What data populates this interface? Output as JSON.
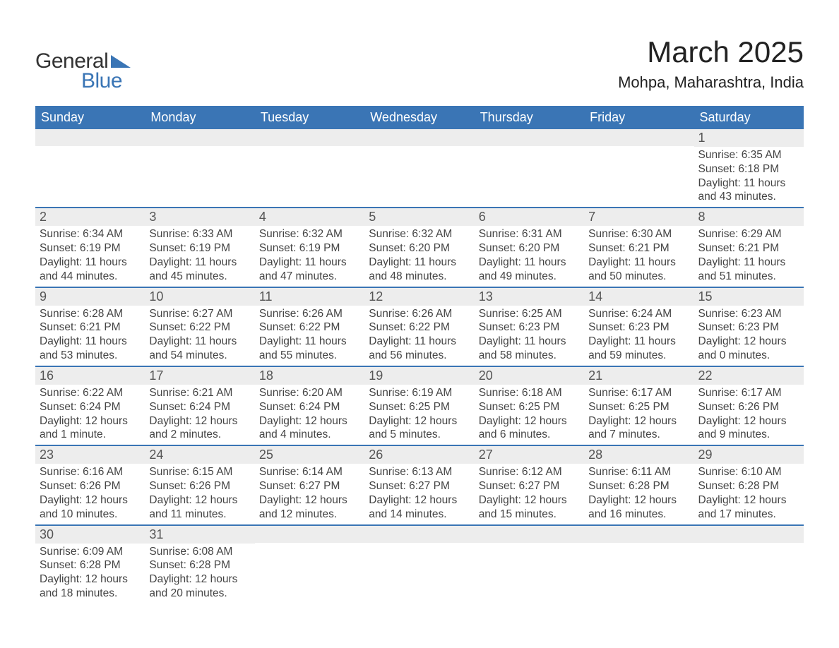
{
  "logo": {
    "word1": "General",
    "word2": "Blue"
  },
  "title": "March 2025",
  "location": "Mohpa, Maharashtra, India",
  "colors": {
    "header_bg": "#3a75b5",
    "header_text": "#ffffff",
    "daynum_bg": "#ededed",
    "row_divider": "#3a75b5",
    "body_text": "#444444",
    "page_bg": "#ffffff"
  },
  "fonts": {
    "title_size_pt": 32,
    "location_size_pt": 17,
    "dayhead_size_pt": 14,
    "daynum_size_pt": 14,
    "cell_size_pt": 12
  },
  "day_headers": [
    "Sunday",
    "Monday",
    "Tuesday",
    "Wednesday",
    "Thursday",
    "Friday",
    "Saturday"
  ],
  "days": [
    {
      "n": 1,
      "sunrise": "6:35 AM",
      "sunset": "6:18 PM",
      "daylight": "11 hours and 43 minutes."
    },
    {
      "n": 2,
      "sunrise": "6:34 AM",
      "sunset": "6:19 PM",
      "daylight": "11 hours and 44 minutes."
    },
    {
      "n": 3,
      "sunrise": "6:33 AM",
      "sunset": "6:19 PM",
      "daylight": "11 hours and 45 minutes."
    },
    {
      "n": 4,
      "sunrise": "6:32 AM",
      "sunset": "6:19 PM",
      "daylight": "11 hours and 47 minutes."
    },
    {
      "n": 5,
      "sunrise": "6:32 AM",
      "sunset": "6:20 PM",
      "daylight": "11 hours and 48 minutes."
    },
    {
      "n": 6,
      "sunrise": "6:31 AM",
      "sunset": "6:20 PM",
      "daylight": "11 hours and 49 minutes."
    },
    {
      "n": 7,
      "sunrise": "6:30 AM",
      "sunset": "6:21 PM",
      "daylight": "11 hours and 50 minutes."
    },
    {
      "n": 8,
      "sunrise": "6:29 AM",
      "sunset": "6:21 PM",
      "daylight": "11 hours and 51 minutes."
    },
    {
      "n": 9,
      "sunrise": "6:28 AM",
      "sunset": "6:21 PM",
      "daylight": "11 hours and 53 minutes."
    },
    {
      "n": 10,
      "sunrise": "6:27 AM",
      "sunset": "6:22 PM",
      "daylight": "11 hours and 54 minutes."
    },
    {
      "n": 11,
      "sunrise": "6:26 AM",
      "sunset": "6:22 PM",
      "daylight": "11 hours and 55 minutes."
    },
    {
      "n": 12,
      "sunrise": "6:26 AM",
      "sunset": "6:22 PM",
      "daylight": "11 hours and 56 minutes."
    },
    {
      "n": 13,
      "sunrise": "6:25 AM",
      "sunset": "6:23 PM",
      "daylight": "11 hours and 58 minutes."
    },
    {
      "n": 14,
      "sunrise": "6:24 AM",
      "sunset": "6:23 PM",
      "daylight": "11 hours and 59 minutes."
    },
    {
      "n": 15,
      "sunrise": "6:23 AM",
      "sunset": "6:23 PM",
      "daylight": "12 hours and 0 minutes."
    },
    {
      "n": 16,
      "sunrise": "6:22 AM",
      "sunset": "6:24 PM",
      "daylight": "12 hours and 1 minute."
    },
    {
      "n": 17,
      "sunrise": "6:21 AM",
      "sunset": "6:24 PM",
      "daylight": "12 hours and 2 minutes."
    },
    {
      "n": 18,
      "sunrise": "6:20 AM",
      "sunset": "6:24 PM",
      "daylight": "12 hours and 4 minutes."
    },
    {
      "n": 19,
      "sunrise": "6:19 AM",
      "sunset": "6:25 PM",
      "daylight": "12 hours and 5 minutes."
    },
    {
      "n": 20,
      "sunrise": "6:18 AM",
      "sunset": "6:25 PM",
      "daylight": "12 hours and 6 minutes."
    },
    {
      "n": 21,
      "sunrise": "6:17 AM",
      "sunset": "6:25 PM",
      "daylight": "12 hours and 7 minutes."
    },
    {
      "n": 22,
      "sunrise": "6:17 AM",
      "sunset": "6:26 PM",
      "daylight": "12 hours and 9 minutes."
    },
    {
      "n": 23,
      "sunrise": "6:16 AM",
      "sunset": "6:26 PM",
      "daylight": "12 hours and 10 minutes."
    },
    {
      "n": 24,
      "sunrise": "6:15 AM",
      "sunset": "6:26 PM",
      "daylight": "12 hours and 11 minutes."
    },
    {
      "n": 25,
      "sunrise": "6:14 AM",
      "sunset": "6:27 PM",
      "daylight": "12 hours and 12 minutes."
    },
    {
      "n": 26,
      "sunrise": "6:13 AM",
      "sunset": "6:27 PM",
      "daylight": "12 hours and 14 minutes."
    },
    {
      "n": 27,
      "sunrise": "6:12 AM",
      "sunset": "6:27 PM",
      "daylight": "12 hours and 15 minutes."
    },
    {
      "n": 28,
      "sunrise": "6:11 AM",
      "sunset": "6:28 PM",
      "daylight": "12 hours and 16 minutes."
    },
    {
      "n": 29,
      "sunrise": "6:10 AM",
      "sunset": "6:28 PM",
      "daylight": "12 hours and 17 minutes."
    },
    {
      "n": 30,
      "sunrise": "6:09 AM",
      "sunset": "6:28 PM",
      "daylight": "12 hours and 18 minutes."
    },
    {
      "n": 31,
      "sunrise": "6:08 AM",
      "sunset": "6:28 PM",
      "daylight": "12 hours and 20 minutes."
    }
  ],
  "layout": {
    "first_weekday_index": 6,
    "weeks": 6,
    "columns": 7
  },
  "labels": {
    "sunrise_prefix": "Sunrise: ",
    "sunset_prefix": "Sunset: ",
    "daylight_prefix": "Daylight: "
  }
}
